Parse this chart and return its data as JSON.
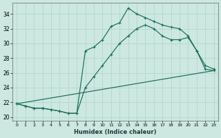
{
  "xlabel": "Humidex (Indice chaleur)",
  "xlim": [
    -0.5,
    23.5
  ],
  "ylim": [
    19.5,
    35.5
  ],
  "xticks": [
    0,
    1,
    2,
    3,
    4,
    5,
    6,
    7,
    8,
    9,
    10,
    11,
    12,
    13,
    14,
    15,
    16,
    17,
    18,
    19,
    20,
    21,
    22,
    23
  ],
  "yticks": [
    20,
    22,
    24,
    26,
    28,
    30,
    32,
    34
  ],
  "bg_color": "#cce8e0",
  "line_color": "#1a6b5a",
  "grid_color": "#b8d8d0",
  "lines": [
    {
      "x": [
        0,
        1,
        2,
        3,
        4,
        5,
        6,
        7,
        8,
        9,
        10,
        11,
        12,
        13,
        14,
        15,
        16,
        17,
        18,
        19,
        20,
        21,
        22,
        23
      ],
      "y": [
        21.8,
        21.5,
        21.2,
        21.2,
        21.0,
        20.8,
        20.5,
        20.5,
        29.0,
        29.5,
        30.5,
        32.3,
        32.8,
        34.8,
        34.0,
        33.5,
        33.0,
        32.5,
        32.2,
        32.0,
        31.0,
        29.0,
        27.0,
        26.5
      ]
    },
    {
      "x": [
        0,
        1,
        2,
        3,
        4,
        5,
        6,
        7,
        8,
        9,
        10,
        11,
        12,
        13,
        14,
        15,
        16,
        17,
        18,
        19,
        20,
        21,
        22,
        23
      ],
      "y": [
        21.8,
        21.5,
        21.2,
        21.2,
        21.0,
        20.8,
        20.5,
        20.5,
        24.0,
        25.5,
        27.0,
        28.5,
        30.0,
        31.0,
        32.0,
        32.5,
        32.0,
        31.0,
        30.5,
        30.5,
        30.8,
        29.0,
        26.5,
        26.3
      ]
    },
    {
      "x": [
        0,
        23
      ],
      "y": [
        21.8,
        26.3
      ]
    }
  ]
}
